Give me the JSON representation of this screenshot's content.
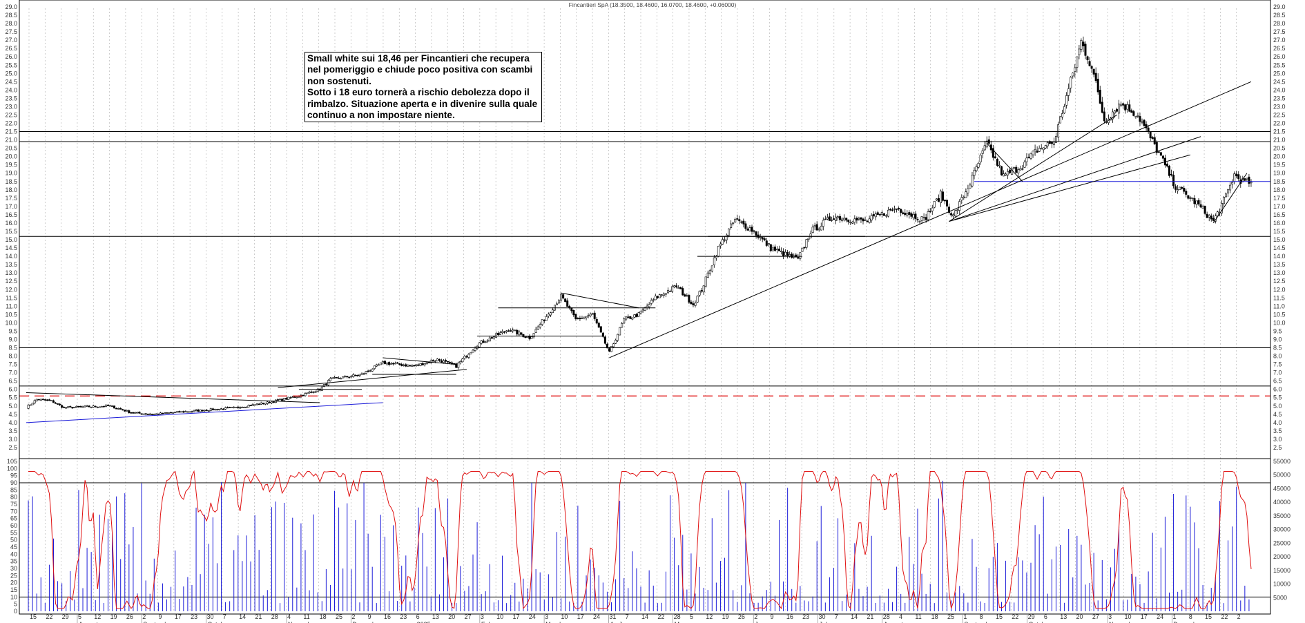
{
  "header": {
    "title": "Fincantieri SpA (18.3500, 18.4600, 16.0700, 18.4600, +0.06000)"
  },
  "annotation": {
    "lines": [
      "Small white sui 18,46 per Fincantieri che recupera",
      "nel pomeriggio e chiude poco positiva con scambi",
      "non sostenuti.",
      "Sotto i 18 euro tornerà a rischio debolezza dopo il",
      "rimbalzo. Situazione aperta e in divenire sulla quale",
      "continuo a non impostare niente."
    ]
  },
  "chart_data": [
    {
      "type": "candlestick",
      "panel": "price",
      "ylim": [
        2.0,
        29.0
      ],
      "ytick_step": 0.5,
      "x_tick_labels": [
        "15",
        "22",
        "29",
        "5",
        "12",
        "19",
        "26",
        "2",
        "9",
        "17",
        "23",
        "30",
        "7",
        "14",
        "21",
        "28",
        "4",
        "11",
        "18",
        "25",
        "2",
        "9",
        "16",
        "23",
        "6",
        "13",
        "20",
        "27",
        "3",
        "10",
        "17",
        "24",
        "3",
        "10",
        "17",
        "24",
        "31",
        "7",
        "14",
        "22",
        "28",
        "5",
        "12",
        "19",
        "26",
        "2",
        "9",
        "16",
        "23",
        "30",
        "7",
        "14",
        "21",
        "28",
        "4",
        "11",
        "18",
        "25",
        "1",
        "8",
        "15",
        "22",
        "29",
        "6",
        "13",
        "20",
        "27",
        "3",
        "10",
        "17",
        "24",
        "1",
        "8",
        "15",
        "22",
        "2"
      ],
      "year_marker": "2025",
      "month_labels": [
        "August",
        "September",
        "October",
        "November",
        "December",
        "February",
        "March",
        "April",
        "May",
        "June",
        "July",
        "August",
        "September",
        "October",
        "November",
        "December"
      ],
      "close_waypoints": [
        [
          0,
          4.9
        ],
        [
          5,
          5.4
        ],
        [
          12,
          5.3
        ],
        [
          18,
          4.9
        ],
        [
          40,
          5.0
        ],
        [
          50,
          4.6
        ],
        [
          60,
          4.5
        ],
        [
          80,
          4.7
        ],
        [
          100,
          4.9
        ],
        [
          115,
          5.2
        ],
        [
          130,
          5.6
        ],
        [
          140,
          6.0
        ],
        [
          145,
          6.6
        ],
        [
          160,
          6.9
        ],
        [
          170,
          7.6
        ],
        [
          185,
          7.4
        ],
        [
          196,
          7.8
        ],
        [
          205,
          7.4
        ],
        [
          215,
          8.7
        ],
        [
          230,
          9.6
        ],
        [
          240,
          9.1
        ],
        [
          248,
          10.4
        ],
        [
          255,
          11.6
        ],
        [
          262,
          10.2
        ],
        [
          270,
          10.5
        ],
        [
          278,
          8.2
        ],
        [
          285,
          10.2
        ],
        [
          292,
          10.5
        ],
        [
          300,
          11.5
        ],
        [
          310,
          12.2
        ],
        [
          318,
          11.1
        ],
        [
          322,
          12.0
        ],
        [
          330,
          14.5
        ],
        [
          338,
          16.2
        ],
        [
          346,
          15.6
        ],
        [
          355,
          14.5
        ],
        [
          362,
          14.1
        ],
        [
          368,
          13.8
        ],
        [
          374,
          15.5
        ],
        [
          385,
          16.4
        ],
        [
          400,
          16.1
        ],
        [
          415,
          16.9
        ],
        [
          428,
          16.2
        ],
        [
          436,
          17.7
        ],
        [
          442,
          16.4
        ],
        [
          450,
          18.4
        ],
        [
          458,
          20.8
        ],
        [
          466,
          18.8
        ],
        [
          475,
          19.5
        ],
        [
          482,
          20.4
        ],
        [
          490,
          20.9
        ],
        [
          498,
          24.5
        ],
        [
          503,
          26.9
        ],
        [
          508,
          25.4
        ],
        [
          514,
          22.2
        ],
        [
          522,
          23.2
        ],
        [
          530,
          22.5
        ],
        [
          540,
          20.2
        ],
        [
          548,
          18.2
        ],
        [
          558,
          17.2
        ],
        [
          566,
          16.1
        ],
        [
          572,
          17.6
        ],
        [
          576,
          18.9
        ],
        [
          580,
          18.5
        ],
        [
          584,
          18.46
        ]
      ],
      "support_lines": [
        15.2,
        20.9,
        21.5,
        8.5,
        6.2
      ],
      "blue_lines": [
        18.5
      ],
      "dashed_red_line": 5.6
    },
    {
      "type": "bar+line",
      "panel": "volume_oscillator",
      "left_ylim": [
        0,
        105
      ],
      "left_ytick_step": 5,
      "right_ylim": [
        0,
        55000
      ],
      "right_ytick_step": 5000,
      "reference_lines": [
        90,
        10
      ],
      "series": [
        {
          "color": "#e01010",
          "type": "line"
        },
        {
          "color": "#1a1ad8",
          "type": "bar"
        }
      ]
    }
  ],
  "colors": {
    "candle": "#000000",
    "oscillator": "#e01010",
    "volume": "#1a1ad8",
    "reference": "#1a1ad8",
    "dashed": "#e01010"
  }
}
